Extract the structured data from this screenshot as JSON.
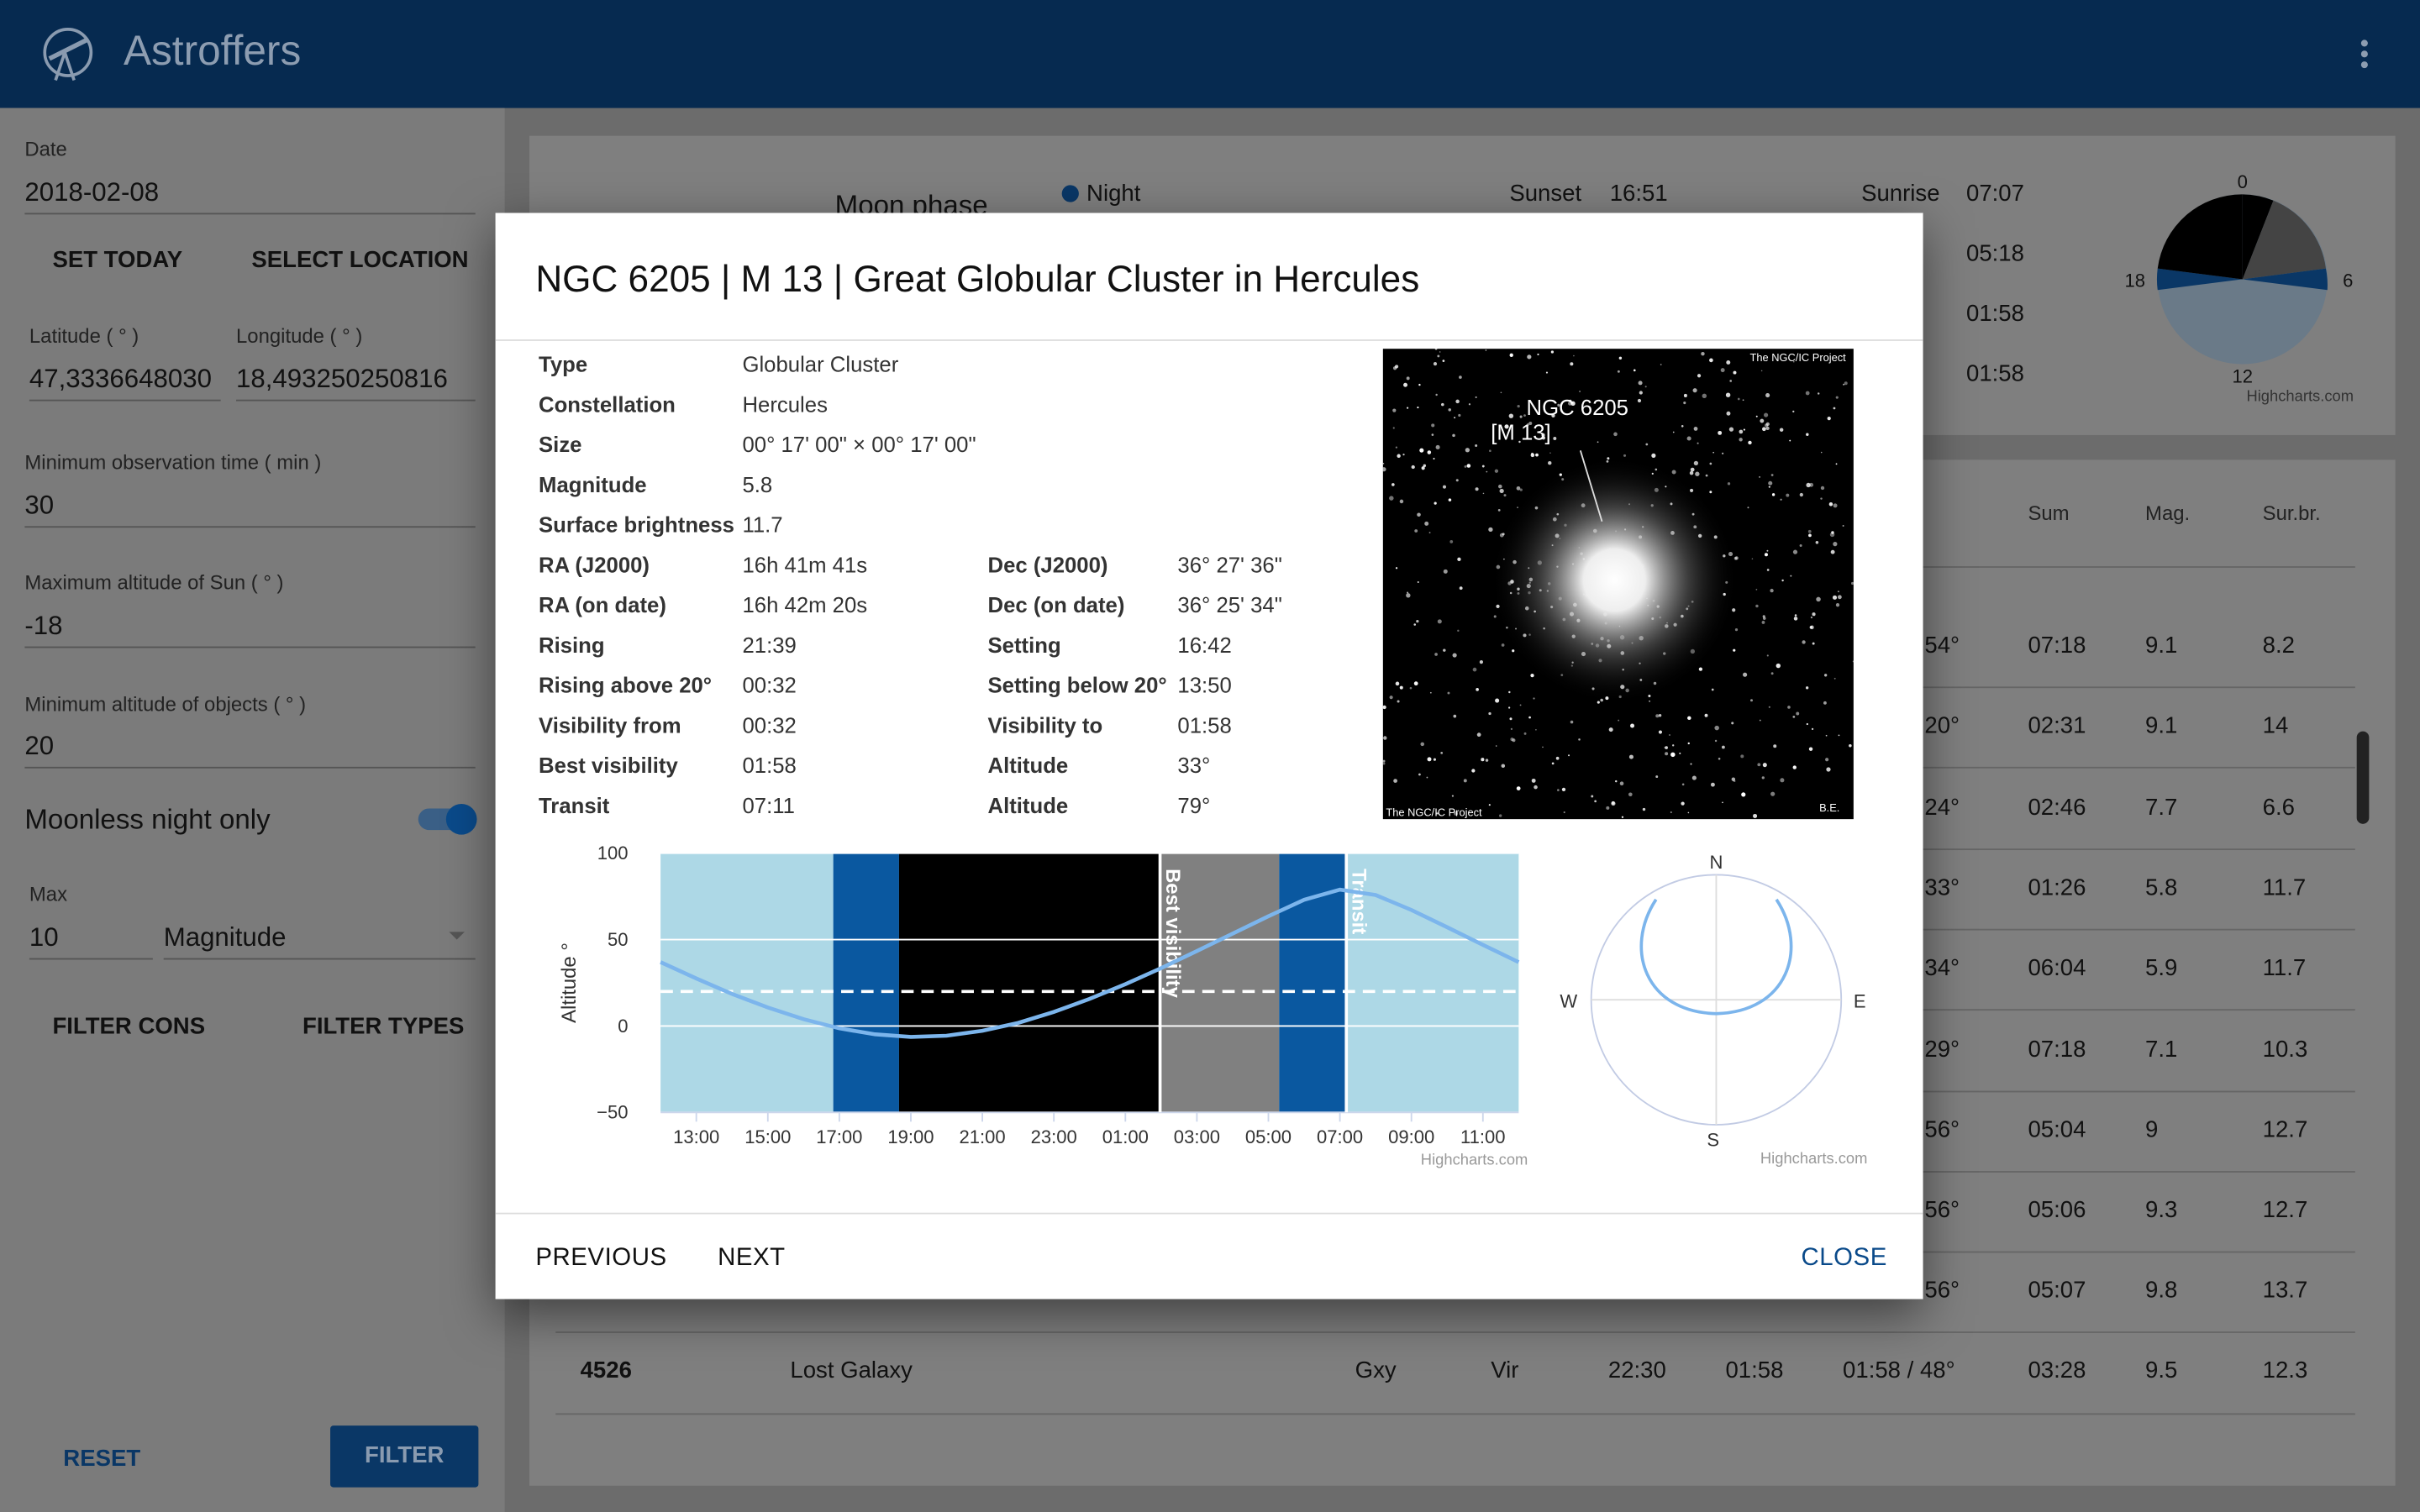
{
  "app_bar": {
    "title": "Astroffers"
  },
  "sidebar": {
    "date_label": "Date",
    "date": "2018-02-08",
    "set_today": "SET TODAY",
    "select_location": "SELECT LOCATION",
    "latitude_label": "Latitude ( ° )",
    "latitude": "47,3336648030",
    "longitude_label": "Longitude ( ° )",
    "longitude": "18,493250250816",
    "min_obs_label": "Minimum observation time ( min )",
    "min_obs": "30",
    "max_sun_label": "Maximum altitude of Sun ( ° )",
    "max_sun": "-18",
    "min_alt_label": "Minimum altitude of objects ( ° )",
    "min_alt": "20",
    "moonless": "Moonless night only",
    "max_label": "Max",
    "max": "10",
    "magnitude": "Magnitude",
    "filter_cons": "FILTER CONS",
    "filter_types": "FILTER TYPES",
    "reset": "RESET",
    "filter": "FILTER"
  },
  "summary": {
    "moon_phase": "Moon phase",
    "night": "Night",
    "sunset_label": "Sunset",
    "sunset": "16:51",
    "sunrise_label": "Sunrise",
    "sunrise": "07:07",
    "times": [
      "05:18",
      "01:58",
      "01:58"
    ],
    "pie_labels": [
      "0",
      "6",
      "12",
      "18"
    ],
    "credit": "Highcharts.com"
  },
  "table": {
    "headers": [
      "Sum",
      "Mag.",
      "Sur.br."
    ],
    "partial_rows": [
      [
        "54°",
        "07:18",
        "9.1",
        "8.2"
      ],
      [
        "20°",
        "02:31",
        "9.1",
        "14"
      ],
      [
        "24°",
        "02:46",
        "7.7",
        "6.6"
      ],
      [
        "33°",
        "01:26",
        "5.8",
        "11.7"
      ],
      [
        "34°",
        "06:04",
        "5.9",
        "11.7"
      ],
      [
        "29°",
        "07:18",
        "7.1",
        "10.3"
      ],
      [
        "56°",
        "05:04",
        "9",
        "12.7"
      ],
      [
        "56°",
        "05:06",
        "9.3",
        "12.7"
      ],
      [
        "56°",
        "05:07",
        "9.8",
        "13.7"
      ]
    ],
    "last_row": [
      "4526",
      "Lost Galaxy",
      "Gxy",
      "Vir",
      "22:30",
      "01:58",
      "01:58 / 48°",
      "03:28",
      "9.5",
      "12.3"
    ]
  },
  "modal": {
    "title": "NGC 6205 | M 13 | Great Globular Cluster in Hercules",
    "details": [
      [
        "Type",
        "Globular Cluster"
      ],
      [
        "Constellation",
        "Hercules"
      ],
      [
        "Size",
        "00° 17' 00\" × 00° 17' 00\""
      ],
      [
        "Magnitude",
        "5.8"
      ],
      [
        "Surface brightness",
        "11.7"
      ],
      [
        "RA (J2000)",
        "16h 41m 41s",
        "Dec (J2000)",
        "36° 27' 36\""
      ],
      [
        "RA (on date)",
        "16h 42m 20s",
        "Dec (on date)",
        "36° 25' 34\""
      ],
      [
        "Rising",
        "21:39",
        "Setting",
        "16:42"
      ],
      [
        "Rising above 20°",
        "00:32",
        "Setting below 20°",
        "13:50"
      ],
      [
        "Visibility from",
        "00:32",
        "Visibility to",
        "01:58"
      ],
      [
        "Best visibility",
        "01:58",
        "Altitude",
        "33°"
      ],
      [
        "Transit",
        "07:11",
        "Altitude",
        "79°"
      ]
    ],
    "image": {
      "name": "NGC 6205",
      "alias": "[M 13]",
      "credit_top": "The NGC/IC Project",
      "credit_bottom": "The NGC/IC Project",
      "author": "B.E."
    },
    "polar": {
      "north": "N",
      "east": "E",
      "south": "S",
      "west": "W",
      "credit": "Highcharts.com"
    },
    "previous": "PREVIOUS",
    "next": "NEXT",
    "close": "CLOSE"
  },
  "chart_data": {
    "type": "line",
    "ylabel": "Altitude °",
    "x": [
      12,
      13,
      14,
      15,
      16,
      17,
      18,
      19,
      20,
      21,
      22,
      23,
      24,
      25,
      26,
      27,
      28,
      29,
      30,
      31,
      32,
      33,
      34,
      35,
      36
    ],
    "values": [
      37.0,
      27.5,
      18.6,
      10.7,
      3.9,
      -1.3,
      -4.8,
      -6.3,
      -5.6,
      -2.8,
      1.8,
      8.1,
      15.7,
      24.2,
      33.5,
      43.4,
      53.5,
      63.5,
      73.0,
      78.9,
      75.8,
      67.1,
      57.1,
      47.0,
      37.0
    ],
    "color": "#7cb5ec",
    "xlim": [
      12,
      36
    ],
    "xticks": [
      {
        "value": 13,
        "label": "13:00"
      },
      {
        "value": 15,
        "label": "15:00"
      },
      {
        "value": 17,
        "label": "17:00"
      },
      {
        "value": 19,
        "label": "19:00"
      },
      {
        "value": 21,
        "label": "21:00"
      },
      {
        "value": 23,
        "label": "23:00"
      },
      {
        "value": 25,
        "label": "01:00"
      },
      {
        "value": 27,
        "label": "03:00"
      },
      {
        "value": 29,
        "label": "05:00"
      },
      {
        "value": 31,
        "label": "07:00"
      },
      {
        "value": 33,
        "label": "09:00"
      },
      {
        "value": 35,
        "label": "11:00"
      }
    ],
    "ylim": [
      -50,
      100
    ],
    "yticks": [
      {
        "value": -50,
        "label": "−50"
      },
      0,
      50,
      100
    ],
    "grid": true,
    "bands": [
      {
        "from": 12,
        "to": 16.83,
        "color": "#add8e6"
      },
      {
        "from": 16.83,
        "to": 18.67,
        "color": "#0a58a0"
      },
      {
        "from": 18.67,
        "to": 25.97,
        "color": "#000000"
      },
      {
        "from": 25.97,
        "to": 29.3,
        "color": "#808080"
      },
      {
        "from": 29.3,
        "to": 31.18,
        "color": "#0a58a0"
      },
      {
        "from": 31.18,
        "to": 36,
        "color": "#add8e6"
      }
    ],
    "plot_lines": [
      {
        "value": 25.97,
        "label": "Best visibility"
      },
      {
        "value": 31.18,
        "label": "Transit"
      }
    ],
    "threshold": 20,
    "credit": "Highcharts.com"
  }
}
